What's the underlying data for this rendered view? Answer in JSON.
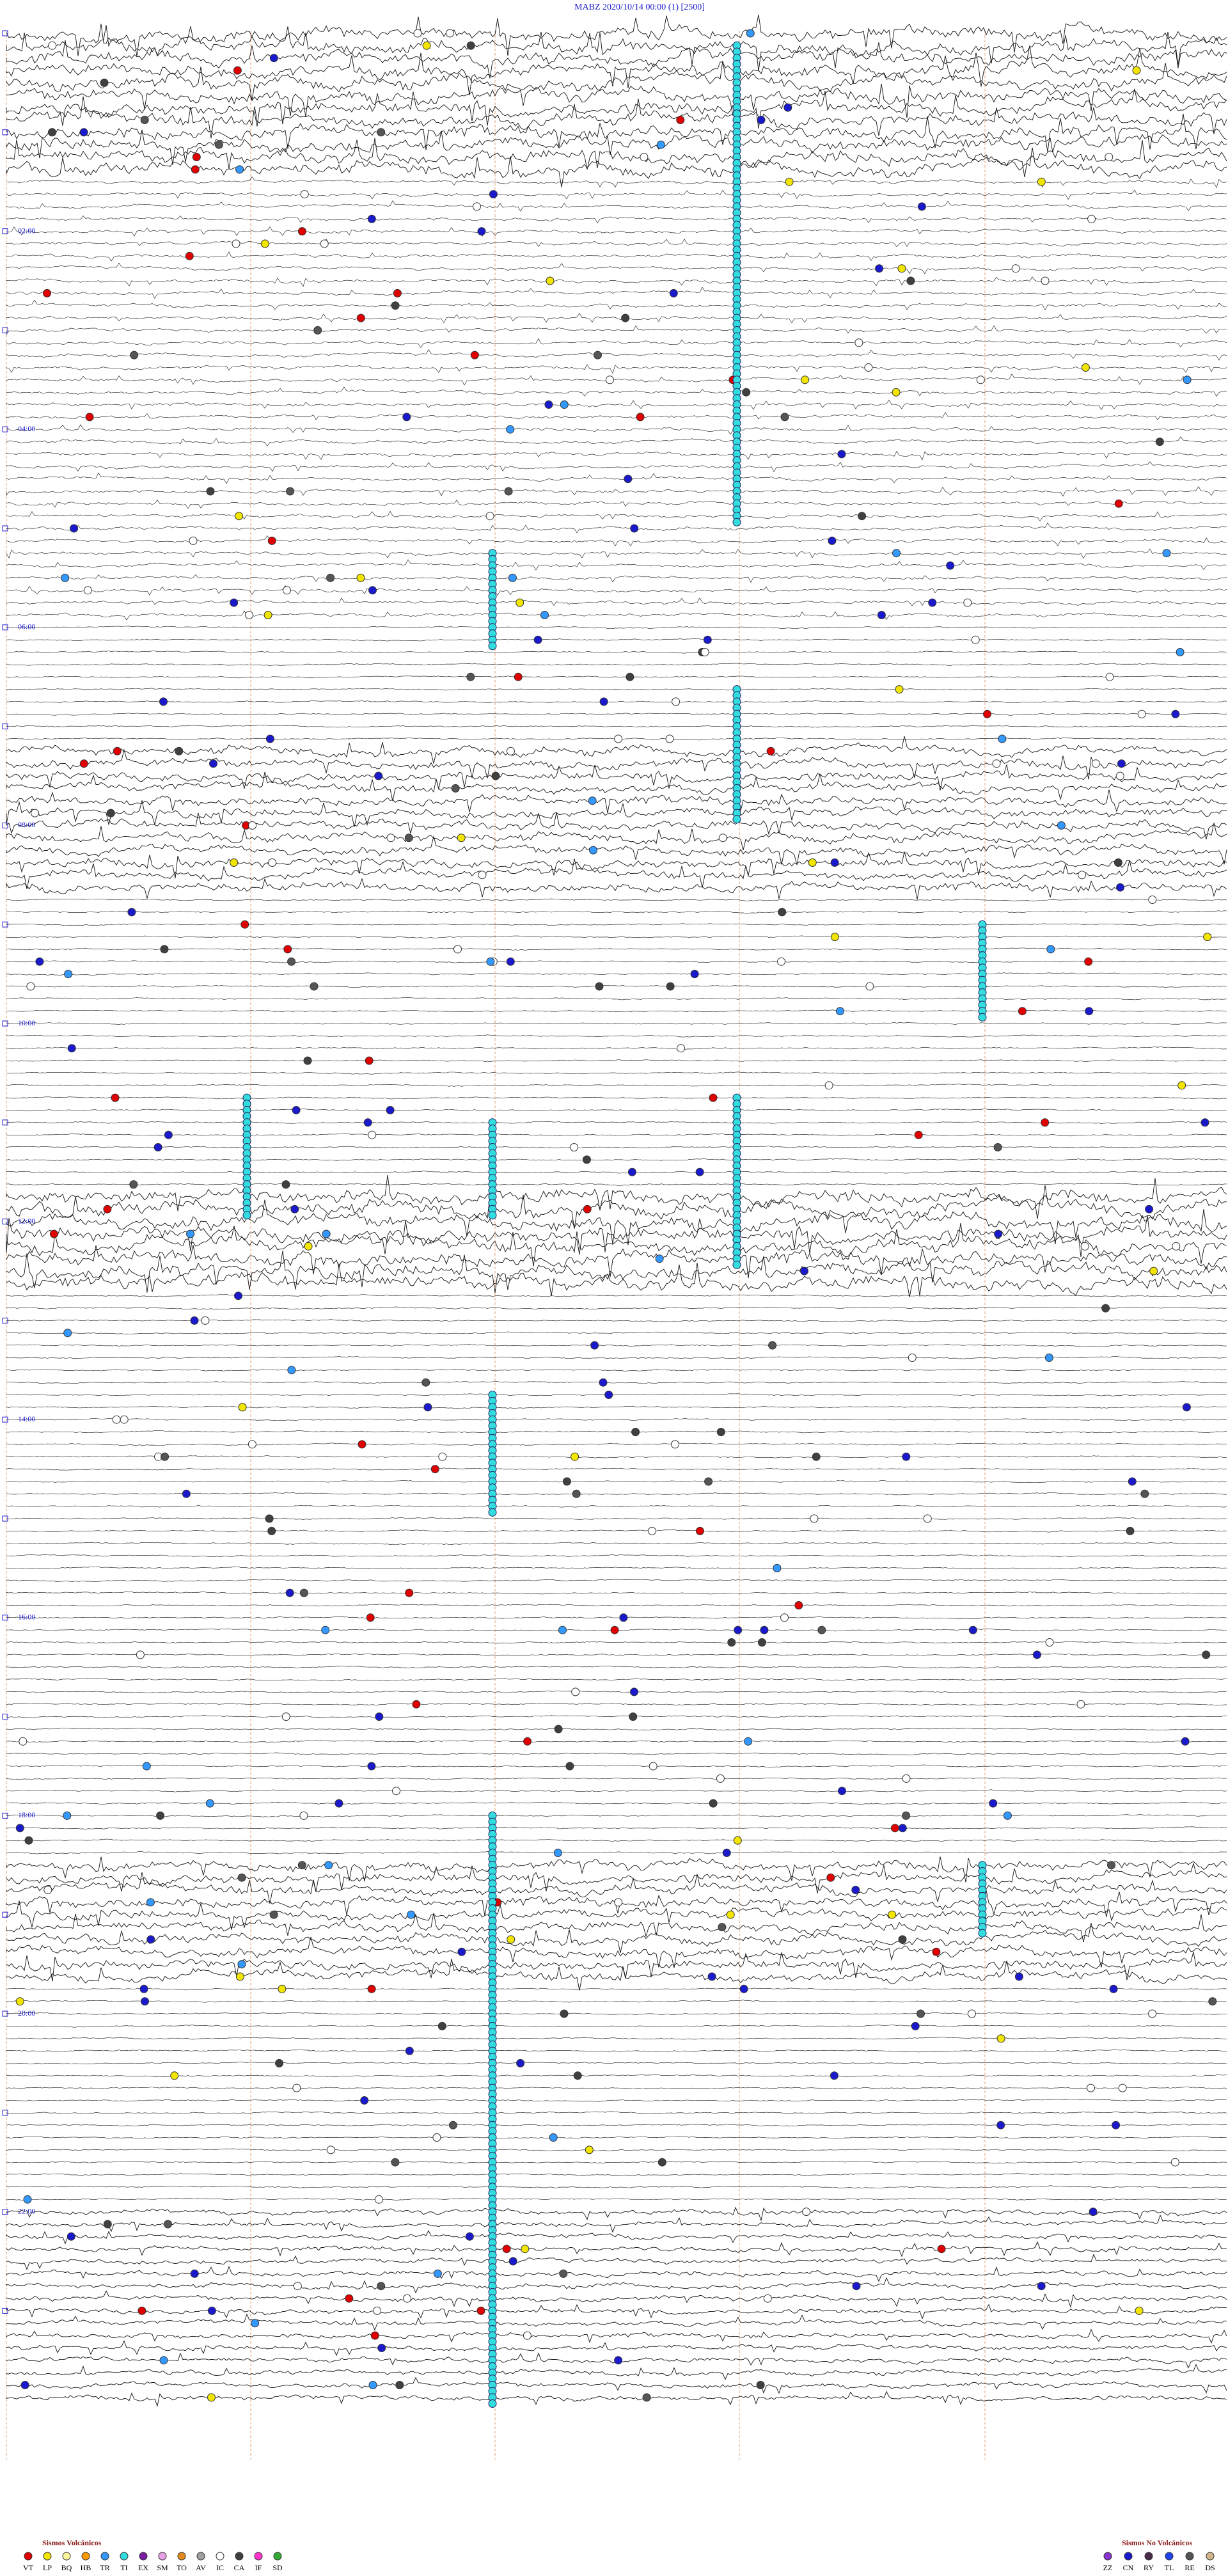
{
  "header": {
    "title": "MABZ     2020/10/14 00:00     (1)     [2500]"
  },
  "hour_labels": [
    "02:00",
    "04:00",
    "06:00",
    "08:00",
    "10:00",
    "12:00",
    "14:00",
    "16:00",
    "18:00",
    "20:00",
    "22:00"
  ],
  "legend": {
    "volcanic": {
      "title": "Sismos Volcánicos",
      "items": [
        {
          "code": "VT",
          "color": "#e00000"
        },
        {
          "code": "LP",
          "color": "#f2e600"
        },
        {
          "code": "BQ",
          "color": "#fff7a0"
        },
        {
          "code": "HB",
          "color": "#ff9900"
        },
        {
          "code": "TR",
          "color": "#3399ff"
        },
        {
          "code": "TI",
          "color": "#33dddd"
        },
        {
          "code": "EX",
          "color": "#7a1fa0"
        },
        {
          "code": "SM",
          "color": "#e6a0e6"
        },
        {
          "code": "TO",
          "color": "#e08a1e"
        },
        {
          "code": "AV",
          "color": "#a0a0a0"
        },
        {
          "code": "IC",
          "color": "#ffffff"
        },
        {
          "code": "CA",
          "color": "#404040"
        },
        {
          "code": "IF",
          "color": "#ff33cc"
        },
        {
          "code": "SD",
          "color": "#33aa33"
        }
      ]
    },
    "non_volcanic": {
      "title": "Sismos No Volcánicos",
      "items": [
        {
          "code": "ZZ",
          "color": "#8833cc"
        },
        {
          "code": "CN",
          "color": "#1a1acc"
        },
        {
          "code": "RY",
          "color": "#4a2a4a"
        },
        {
          "code": "TL",
          "color": "#2244ee"
        },
        {
          "code": "RE",
          "color": "#555555"
        },
        {
          "code": "DS",
          "color": "#d2b48c"
        }
      ]
    }
  }
}
